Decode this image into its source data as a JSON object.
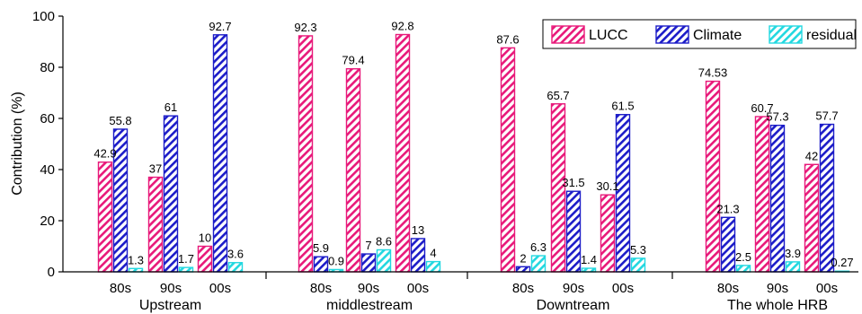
{
  "chart_data": {
    "type": "bar",
    "ylabel": "Contribution (%)",
    "ylim": [
      0,
      100
    ],
    "yticks": [
      0,
      20,
      40,
      60,
      80,
      100
    ],
    "grid": false,
    "legend_position": "top-right",
    "groups": [
      {
        "label": "Upstream",
        "categories": [
          "80s",
          "90s",
          "00s"
        ]
      },
      {
        "label": "middlestream",
        "categories": [
          "80s",
          "90s",
          "00s"
        ]
      },
      {
        "label": "Downtream",
        "categories": [
          "80s",
          "90s",
          "00s"
        ]
      },
      {
        "label": "The whole HRB",
        "categories": [
          "80s",
          "90s",
          "00s"
        ]
      }
    ],
    "series": [
      {
        "name": "LUCC",
        "color": "#e8197a",
        "pattern": "diagonal-hatch",
        "values": [
          42.9,
          37,
          10,
          92.3,
          79.4,
          92.8,
          87.6,
          65.7,
          30.1,
          74.53,
          60.7,
          42
        ],
        "labels": [
          "42.9",
          "37",
          "10",
          "92.3",
          "79.4",
          "92.8",
          "87.6",
          "65.7",
          "30.1",
          "74.53",
          "60.7",
          "42"
        ]
      },
      {
        "name": "Climate",
        "color": "#1c1cc8",
        "pattern": "diagonal-hatch",
        "values": [
          55.8,
          61,
          92.7,
          5.9,
          7,
          13,
          2,
          31.5,
          61.5,
          21.3,
          57.3,
          57.7
        ],
        "labels": [
          "55.8",
          "61",
          "92.7",
          "5.9",
          "7",
          "13",
          "2",
          "31.5",
          "61.5",
          "21.3",
          "57.3",
          "57.7"
        ]
      },
      {
        "name": "residual",
        "color": "#22d8e0",
        "pattern": "diagonal-hatch",
        "values": [
          1.3,
          1.7,
          3.6,
          0.9,
          8.6,
          4,
          6.3,
          1.4,
          5.3,
          2.5,
          3.9,
          0.27
        ],
        "labels": [
          "1.3",
          "1.7",
          "3.6",
          "0.9",
          "8.6",
          "4",
          "6.3",
          "1.4",
          "5.3",
          "2.5",
          "3.9",
          "0.27"
        ]
      }
    ]
  }
}
